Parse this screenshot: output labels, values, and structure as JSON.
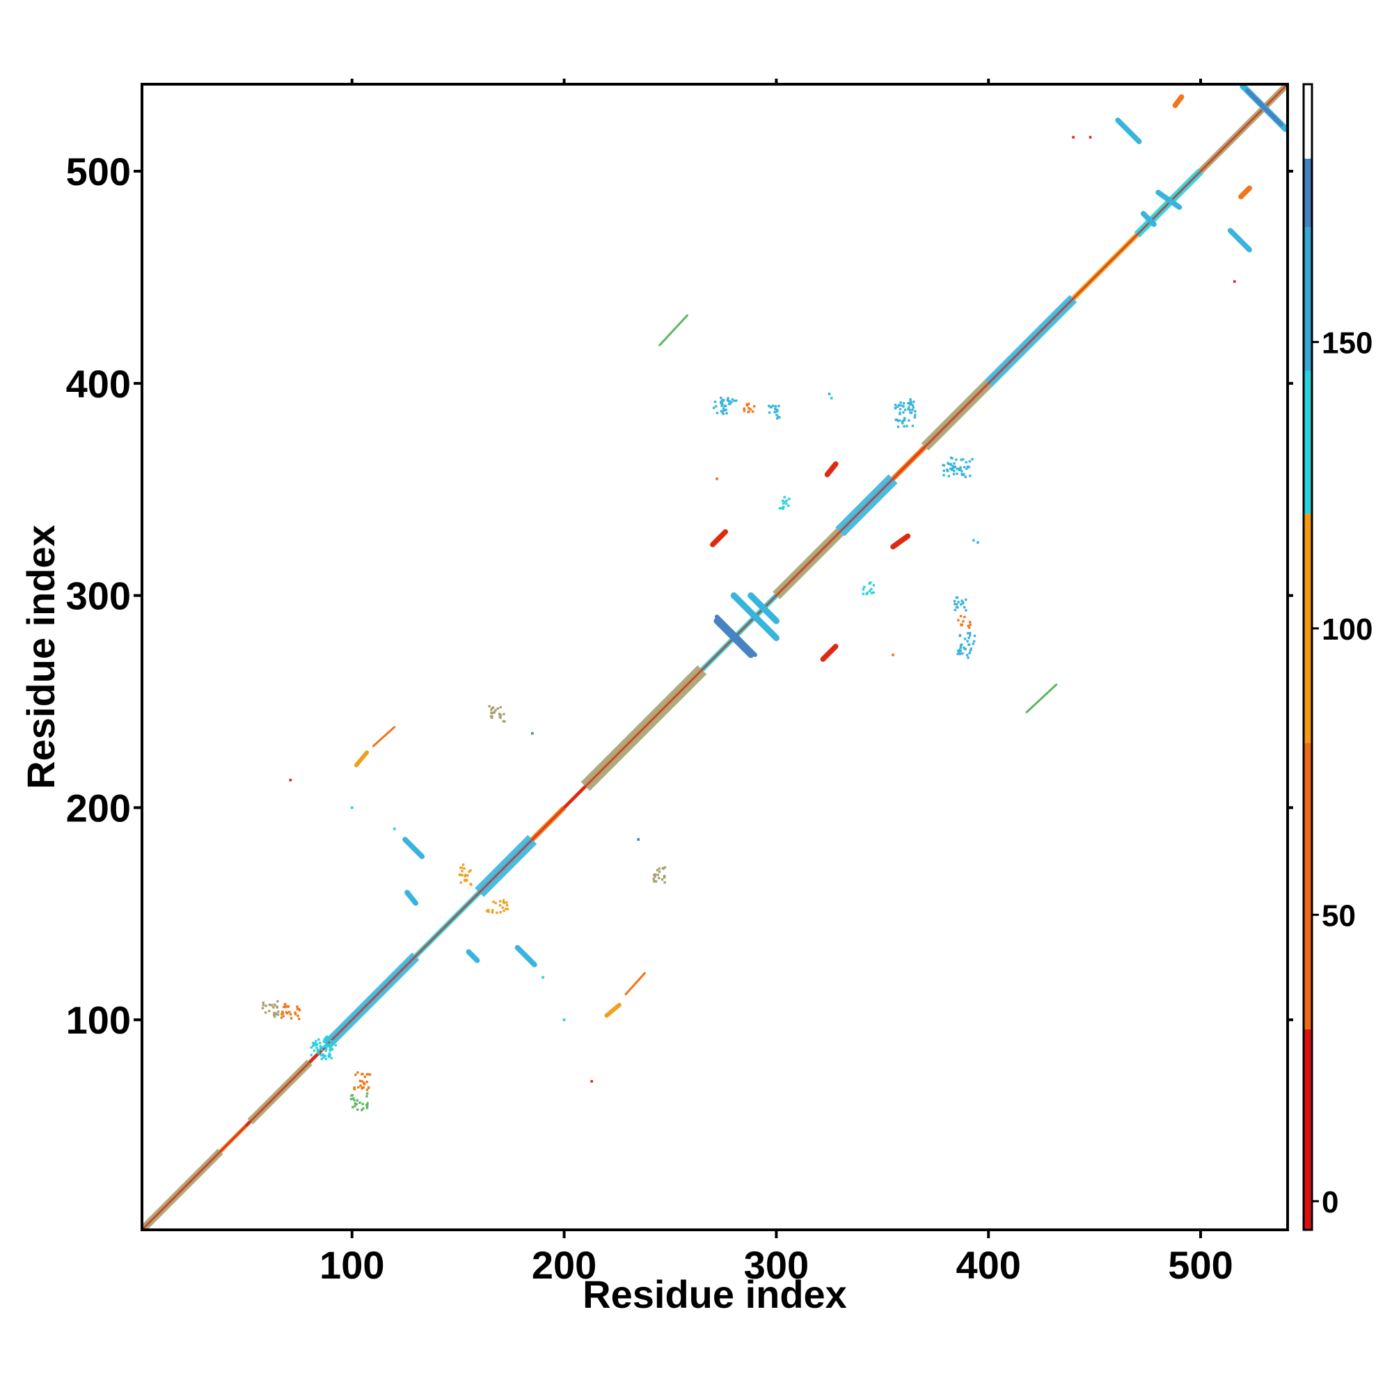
{
  "chart_data": {
    "type": "heatmap",
    "title": "",
    "xlabel": "Residue index",
    "ylabel": "Residue index",
    "xlim": [
      1,
      541
    ],
    "ylim": [
      1,
      541
    ],
    "x_ticks": [
      100,
      200,
      300,
      400,
      500
    ],
    "y_ticks": [
      100,
      200,
      300,
      400,
      500
    ],
    "grid": false,
    "symmetric": true,
    "colorbar": {
      "ticks": [
        0,
        50,
        100,
        150
      ],
      "range": [
        -5,
        195
      ],
      "bands": [
        {
          "from": -5,
          "to": 30,
          "color": "#dd1111"
        },
        {
          "from": 30,
          "to": 80,
          "color": "#f06a14"
        },
        {
          "from": 80,
          "to": 120,
          "color": "#f39a10"
        },
        {
          "from": 120,
          "to": 145,
          "color": "#2ad2dc"
        },
        {
          "from": 145,
          "to": 170,
          "color": "#37a8d6"
        },
        {
          "from": 170,
          "to": 182,
          "color": "#4681c0"
        },
        {
          "from": 182,
          "to": 195,
          "color": "#ffffff"
        }
      ]
    },
    "colors": {
      "red": "#dd2a10",
      "orange": "#f0761a",
      "amber": "#f0a020",
      "cyan": "#2ad0dc",
      "sky": "#39b4dc",
      "blue": "#4683c0",
      "olive": "#a9a070",
      "green": "#5cb860"
    },
    "diagonal": {
      "from": 1,
      "to": 541,
      "color": "#dd2a10",
      "bands": [
        {
          "from": 2,
          "to": 38,
          "width": 3,
          "color": "#a9a070"
        },
        {
          "from": 38,
          "to": 50,
          "width": 1.5,
          "color": "#f0761a"
        },
        {
          "from": 52,
          "to": 80,
          "width": 3,
          "color": "#a9a070"
        },
        {
          "from": 88,
          "to": 130,
          "width": 4,
          "color": "#39b4dc"
        },
        {
          "from": 130,
          "to": 160,
          "width": 2,
          "color": "#2ad0dc"
        },
        {
          "from": 160,
          "to": 185,
          "width": 5,
          "color": "#39b4dc"
        },
        {
          "from": 185,
          "to": 200,
          "width": 2,
          "color": "#f0761a"
        },
        {
          "from": 210,
          "to": 265,
          "width": 5,
          "color": "#a9a070"
        },
        {
          "from": 265,
          "to": 300,
          "width": 2,
          "color": "#2ad0dc"
        },
        {
          "from": 300,
          "to": 330,
          "width": 4,
          "color": "#a9a070"
        },
        {
          "from": 330,
          "to": 355,
          "width": 5,
          "color": "#39b4dc"
        },
        {
          "from": 355,
          "to": 370,
          "width": 2,
          "color": "#f0761a"
        },
        {
          "from": 370,
          "to": 400,
          "width": 4,
          "color": "#a9a070"
        },
        {
          "from": 400,
          "to": 440,
          "width": 4,
          "color": "#39b4dc"
        },
        {
          "from": 440,
          "to": 470,
          "width": 2,
          "color": "#f0a020"
        },
        {
          "from": 470,
          "to": 500,
          "width": 3,
          "color": "#2ad0dc"
        },
        {
          "from": 500,
          "to": 540,
          "width": 2.5,
          "color": "#a9a070"
        }
      ]
    },
    "contact_strips": [
      {
        "x1": 272,
        "y1": 288,
        "x2": 288,
        "y2": 272,
        "width": 3,
        "color": "#4683c0"
      },
      {
        "x1": 280,
        "y1": 300,
        "x2": 300,
        "y2": 280,
        "width": 3,
        "color": "#39b4dc"
      },
      {
        "x1": 272,
        "y1": 290,
        "x2": 290,
        "y2": 272,
        "width": 2,
        "color": "#4683c0"
      },
      {
        "x1": 288,
        "y1": 300,
        "x2": 300,
        "y2": 288,
        "width": 3,
        "color": "#39b4dc"
      },
      {
        "x1": 125,
        "y1": 185,
        "x2": 133,
        "y2": 177,
        "width": 2.5,
        "color": "#39b4dc"
      },
      {
        "x1": 126,
        "y1": 160,
        "x2": 130,
        "y2": 155,
        "width": 2.5,
        "color": "#39b4dc"
      },
      {
        "x1": 155,
        "y1": 132,
        "x2": 159,
        "y2": 128,
        "width": 2.5,
        "color": "#39b4dc"
      },
      {
        "x1": 178,
        "y1": 134,
        "x2": 186,
        "y2": 126,
        "width": 2.5,
        "color": "#39b4dc"
      },
      {
        "x1": 461,
        "y1": 524,
        "x2": 471,
        "y2": 514,
        "width": 2.5,
        "color": "#39b4dc"
      },
      {
        "x1": 514,
        "y1": 472,
        "x2": 523,
        "y2": 463,
        "width": 2.5,
        "color": "#39b4dc"
      },
      {
        "x1": 473,
        "y1": 480,
        "x2": 478,
        "y2": 475,
        "width": 2.5,
        "color": "#39b4dc"
      },
      {
        "x1": 480,
        "y1": 490,
        "x2": 490,
        "y2": 483,
        "width": 2.5,
        "color": "#39b4dc"
      },
      {
        "x1": 520,
        "y1": 540,
        "x2": 540,
        "y2": 520,
        "width": 3,
        "color": "#39b4dc"
      },
      {
        "x1": 522,
        "y1": 538,
        "x2": 538,
        "y2": 522,
        "width": 2,
        "color": "#4683c0"
      },
      {
        "x1": 324,
        "y1": 357,
        "x2": 328,
        "y2": 362,
        "width": 2.5,
        "color": "#dd2a10"
      },
      {
        "x1": 355,
        "y1": 323,
        "x2": 362,
        "y2": 328,
        "width": 2.5,
        "color": "#dd2a10"
      },
      {
        "x1": 270,
        "y1": 324,
        "x2": 276,
        "y2": 330,
        "width": 2.5,
        "color": "#dd2a10"
      },
      {
        "x1": 322,
        "y1": 270,
        "x2": 328,
        "y2": 276,
        "width": 2.5,
        "color": "#dd2a10"
      },
      {
        "x1": 519,
        "y1": 488,
        "x2": 523,
        "y2": 492,
        "width": 2.5,
        "color": "#f0761a"
      },
      {
        "x1": 488,
        "y1": 531,
        "x2": 491,
        "y2": 535,
        "width": 2.5,
        "color": "#f0761a"
      },
      {
        "x1": 245,
        "y1": 418,
        "x2": 258,
        "y2": 432,
        "width": 1,
        "color": "#5cb860"
      },
      {
        "x1": 418,
        "y1": 245,
        "x2": 432,
        "y2": 258,
        "width": 1,
        "color": "#5cb860"
      },
      {
        "x1": 102,
        "y1": 220,
        "x2": 107,
        "y2": 226,
        "width": 2,
        "color": "#f0a020"
      },
      {
        "x1": 110,
        "y1": 229,
        "x2": 120,
        "y2": 238,
        "width": 1,
        "color": "#f0761a"
      },
      {
        "x1": 220,
        "y1": 102,
        "x2": 226,
        "y2": 107,
        "width": 2,
        "color": "#f0a020"
      },
      {
        "x1": 229,
        "y1": 112,
        "x2": 238,
        "y2": 122,
        "width": 1,
        "color": "#f0761a"
      }
    ],
    "contact_patches": [
      {
        "x": 57,
        "y": 101,
        "w": 8,
        "h": 8,
        "color": "#a9a070"
      },
      {
        "x": 66,
        "y": 99,
        "w": 9,
        "h": 8,
        "color": "#f0761a"
      },
      {
        "x": 99,
        "y": 57,
        "w": 8,
        "h": 8,
        "color": "#5cb860"
      },
      {
        "x": 100,
        "y": 66,
        "w": 8,
        "h": 9,
        "color": "#f0761a"
      },
      {
        "x": 164,
        "y": 240,
        "w": 8,
        "h": 8,
        "color": "#a9a070"
      },
      {
        "x": 240,
        "y": 164,
        "w": 8,
        "h": 8,
        "color": "#a9a070"
      },
      {
        "x": 284,
        "y": 385,
        "w": 6,
        "h": 6,
        "color": "#f0761a"
      },
      {
        "x": 385,
        "y": 284,
        "w": 6,
        "h": 6,
        "color": "#f0761a"
      },
      {
        "x": 270,
        "y": 385,
        "w": 12,
        "h": 8,
        "color": "#39b4dc"
      },
      {
        "x": 385,
        "y": 270,
        "w": 8,
        "h": 12,
        "color": "#39b4dc"
      },
      {
        "x": 293,
        "y": 383,
        "w": 8,
        "h": 6,
        "color": "#39b4dc"
      },
      {
        "x": 383,
        "y": 292,
        "w": 6,
        "h": 8,
        "color": "#39b4dc"
      },
      {
        "x": 340,
        "y": 300,
        "w": 6,
        "h": 6,
        "color": "#2ad0dc"
      },
      {
        "x": 300,
        "y": 340,
        "w": 6,
        "h": 6,
        "color": "#2ad0dc"
      },
      {
        "x": 355,
        "y": 378,
        "w": 10,
        "h": 14,
        "color": "#39b4dc"
      },
      {
        "x": 378,
        "y": 355,
        "w": 14,
        "h": 10,
        "color": "#39b4dc"
      },
      {
        "x": 150,
        "y": 163,
        "w": 6,
        "h": 10,
        "color": "#f0a020"
      },
      {
        "x": 163,
        "y": 150,
        "w": 10,
        "h": 6,
        "color": "#f0a020"
      },
      {
        "x": 80,
        "y": 82,
        "w": 12,
        "h": 8,
        "color": "#2ad0dc"
      },
      {
        "x": 82,
        "y": 80,
        "w": 8,
        "h": 12,
        "color": "#2ad0dc"
      }
    ],
    "contact_points": [
      {
        "x": 71,
        "y": 213,
        "color": "#dd2a10"
      },
      {
        "x": 213,
        "y": 71,
        "color": "#dd2a10"
      },
      {
        "x": 516,
        "y": 448,
        "color": "#dd2a10"
      },
      {
        "x": 448,
        "y": 516,
        "color": "#dd2a10"
      },
      {
        "x": 185,
        "y": 235,
        "color": "#4683c0"
      },
      {
        "x": 235,
        "y": 185,
        "color": "#4683c0"
      },
      {
        "x": 395,
        "y": 325,
        "color": "#39b4dc"
      },
      {
        "x": 325,
        "y": 395,
        "color": "#39b4dc"
      },
      {
        "x": 355,
        "y": 272,
        "color": "#f0761a"
      },
      {
        "x": 272,
        "y": 355,
        "color": "#f0761a"
      },
      {
        "x": 440,
        "y": 516,
        "color": "#dd2a10"
      },
      {
        "x": 326,
        "y": 393,
        "color": "#2ad0dc"
      },
      {
        "x": 393,
        "y": 326,
        "color": "#2ad0dc"
      },
      {
        "x": 100,
        "y": 200,
        "color": "#2ad0dc"
      },
      {
        "x": 200,
        "y": 100,
        "color": "#2ad0dc"
      },
      {
        "x": 190,
        "y": 120,
        "color": "#2ad0dc"
      },
      {
        "x": 120,
        "y": 190,
        "color": "#2ad0dc"
      }
    ]
  }
}
